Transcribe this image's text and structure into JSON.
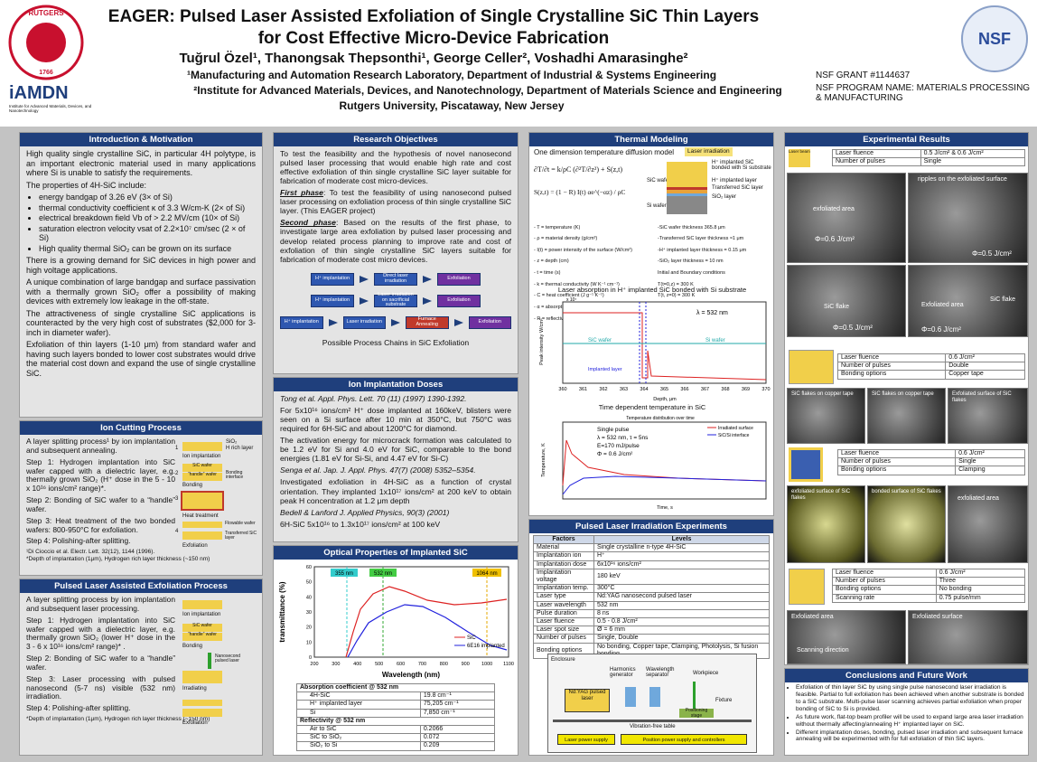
{
  "header": {
    "title": [
      "EAGER: Pulsed Laser Assisted Exfoliation of Single Crystalline SiC Thin Layers",
      "for Cost Effective Micro-Device Fabrication"
    ],
    "authors": "Tuğrul Özel¹, Thanongsak Thepsonthi¹, George Celler², Voshadhi Amarasinghe²",
    "affiliations": [
      "¹Manufacturing  and Automation Research Laboratory,  Department of Industrial & Systems Engineering",
      "²Institute for Advanced Materials, Devices, and Nanotechnology, Department of Materials Science and Engineering",
      "Rutgers University, Piscataway, New Jersey"
    ],
    "grant": [
      "NSF GRANT  #1144637",
      "NSF PROGRAM NAME:  MATERIALS PROCESSING & MANUFACTURING"
    ],
    "rutgers": [
      "RUTGERS",
      "1766"
    ],
    "iamdn": [
      "iAMDN",
      "Institute for Advanced Materials, Devices, and Nanotechnology"
    ],
    "nsf": "NSF"
  },
  "intro": {
    "title": "Introduction & Motivation",
    "paras1": [
      "High quality single crystalline SiC, in particular 4H polytype, is an important electronic material used in many applications where Si is unable to satisfy the requirements.",
      "The properties of 4H-SiC include:"
    ],
    "bullets": [
      "energy bandgap of 3.26 eV (3× of Si)",
      "thermal conductivity coefficient  κ of 3.3 W/cm-K (2× of Si)",
      "electrical breakdown field Vb of > 2.2 MV/cm (10× of Si)",
      "saturation electron velocity  vsat of 2.2×10⁷ cm/sec (2 × of Si)",
      "High quality thermal SiO₂ can be grown on its surface"
    ],
    "paras2": [
      "There is a growing demand for SiC devices in high power and high voltage applications.",
      "A unique combination of large bandgap and surface passivation with a thermally grown SiO₂ offer a possibility of making devices with extremely low leakage in the off-state.",
      "The attractiveness of single crystalline SiC applications is counteracted by the very high cost of substrates ($2,000 for 3-inch in diameter wafer).",
      "Exfoliation of thin layers (1-10 μm) from standard wafer and having such layers bonded to lower cost substrates would drive the material cost down and expand the use of single crystalline SiC."
    ]
  },
  "ion_cutting": {
    "title": "Ion Cutting Process",
    "steps": [
      "A layer splitting process¹ by ion implantation and subsequent annealing.",
      "Step 1: Hydrogen implantation into SiC wafer capped with a dielectric layer, e.g. thermally grown SiO₂ (H⁺ dose in the 5 - 10 x 10¹⁶ ions/cm² range)*.",
      "Step 2: Bonding of SiC wafer to a “handle” wafer.",
      "Step 3: Heat treatment of the two bonded wafers: 800-950°C for exfoliation.",
      "Step 4: Polishing-after splitting."
    ],
    "figure": [
      "1",
      "2",
      "3",
      "4",
      "SiO₂",
      "H rich layer",
      "Ion implantation",
      "SiC wafer",
      "“handle” wafer",
      "Bonding interface",
      "Bonding",
      "Heat treatment",
      "Flowable wafer",
      "Transferred SiC layer",
      "Exfoliation"
    ],
    "notes": [
      "¹Di Cioccio et al. Electr. Lett. 32(12), 1144 (1996).",
      "*Depth of implantation (1μm), Hydrogen rich layer thickness (~150 nm)"
    ]
  },
  "plae": {
    "title": "Pulsed Laser Assisted Exfoliation Process",
    "steps": [
      "A layer splitting process by ion implantation and subsequent laser processing.",
      "Step 1: Hydrogen implantation into SiC wafer capped with a dielectric layer, e.g. thermally grown SiO₂ (lower H⁺ dose in the 3 - 6 x 10¹⁶ ions/cm² range)* .",
      "Step 2: Bonding of SiC wafer to a “handle” wafer.",
      "Step 3: Laser processing with pulsed nanosecond (5-7 ns) visible (532 nm) irradiation.",
      "Step 4: Polishing-after splitting."
    ],
    "figure": [
      "Ion implantation",
      "Bonding",
      "Nanosecond pulsed laser",
      "Irradiating",
      "Exfoliation",
      "SiC wafer",
      "“handle” wafer"
    ],
    "notes": [
      "*Depth of implantation (1μm), Hydrogen rich layer thickness (~150 nm)"
    ]
  },
  "objectives": {
    "title": "Research Objectives",
    "intro": [
      "To test the feasibility and the hypothesis of novel nanosecond pulsed laser processing that would enable high rate and cost effective exfoliation of thin single crystalline SiC layer suitable for fabrication of moderate cost micro-devices."
    ],
    "phases": [
      {
        "label": "First phase",
        "text": ": To test the feasibility of using nanosecond pulsed laser processing on exfoliation process of thin single crystalline SiC layer. (This EAGER project)"
      },
      {
        "label": "Second phase",
        "text": ": Based on the results of the first phase, to investigate large area exfoliation by pulsed laser processing and develop related process planning to improve rate and cost of exfoliation of thin single crystalline SiC layers suitable for fabrication of moderate cost micro devices."
      }
    ],
    "chains": [
      [
        "H⁺ implantation",
        "Direct laser irradiation",
        "Exfoliation"
      ],
      [
        "H⁺ implantation",
        "Laser irradiation on sacrificial substrate",
        "Exfoliation"
      ],
      [
        "H⁺ implantation",
        "Laser irradiation",
        "Furnace Annealing",
        "Exfoliation"
      ]
    ],
    "caption": "Possible Process Chains in SiC Exfoliation"
  },
  "ion_doses": {
    "title": "Ion Implantation Doses",
    "items": [
      {
        "cite": "Tong et al. Appl. Phys. Lett. 70 (11) (1997) 1390-1392."
      },
      {
        "p": "For 5x10¹⁶ ions/cm² H⁺ dose implanted at 160keV, blisters were seen on a Si surface after 10 min at 350°C, but 750°C was required for 6H-SiC and about 1200°C for diamond."
      },
      {
        "p": "The activation energy for microcrack formation was calculated to be 1.2 eV for Si and 4.0 eV for SiC, comparable to the bond energies (1.81 eV for Si-Si, and 4.47 eV for Si-C)"
      },
      {
        "cite": "Senga et al. Jap. J. Appl. Phys. 47(7) (2008) 5352–5354."
      },
      {
        "p": "Investigated exfoliation in 4H-SiC as a function of crystal orientation. They implanted 1x10¹⁷ ions/cm² at 200 keV to obtain peak H concentration at 1.2 μm depth"
      },
      {
        "cite": "Bedell & Lanford J. Applied Physics, 90(3) (2001)"
      },
      {
        "p": "6H-SiC 5x10¹⁶ to 1.3x10¹⁷ ions/cm² at 100 keV"
      }
    ]
  },
  "optical": {
    "title": "Optical Properties of Implanted SiC",
    "graph": {
      "ylabel": "transmittance (%)",
      "xlabel": "Wavelength (nm)",
      "xticks": [
        200,
        300,
        400,
        500,
        600,
        700,
        800,
        900,
        1000,
        1100
      ],
      "yticks": [
        0,
        10,
        20,
        30,
        40,
        50,
        60
      ],
      "markers": [
        "355 nm",
        "532 nm",
        "1064 nm"
      ],
      "legend": [
        "SiC",
        "6E16 implanted"
      ]
    },
    "table": [
      {
        "heading": "Absorption coefficient @ 532 nm",
        "rows": [
          [
            "4H-SiC",
            "19.8 cm⁻¹"
          ],
          [
            "H⁺ implanted layer",
            "75,205 cm⁻¹"
          ],
          [
            "Si",
            "7,850 cm⁻¹"
          ]
        ]
      },
      {
        "heading": "Reflectivity @ 532 nm",
        "rows": [
          [
            "Air to SiC",
            "0.2066"
          ],
          [
            "SiC to SiO₂",
            "0.072"
          ],
          [
            "SiO₂ to Si",
            "0.209"
          ]
        ]
      }
    ]
  },
  "thermal": {
    "title": "Thermal Modeling",
    "model": "One dimension temperature diffusion model",
    "diagram": [
      "Laser irradiation",
      "H⁺ implanted SiC bonded with Si substrate",
      "SiC wafer",
      "H⁺ implanted layer",
      "Transferred SiC layer",
      "SiO₂ layer",
      "Si wafer"
    ],
    "eq": [
      "∂T/∂t = k/ρC (∂²T/∂z²) + S(z,t)",
      "S(z,t) = (1 − R) I(t) αe^(−αz) / ρC"
    ],
    "vars": [
      "- T = temperature (K)",
      "- ρ = material density (g/cm³)",
      "- I(t) = power intensity of the surface (W/cm²)",
      "- z = depth (cm)",
      "- t = time (s)",
      "- k = thermal conductivity (W K⁻¹ cm⁻¹)",
      "- C = heat coefficient (J g⁻¹ K⁻¹)",
      "- α = absorption coefficient (cm⁻¹)",
      "- R = reflectivity"
    ],
    "params": [
      "-SiC wafer thickness 365.8 μm",
      "-Transferred SiC layer thickness ≈1 μm",
      "-H⁺ implanted layer thickness = 0.15 μm",
      "-SiO₂ layer thickness = 10 nm",
      "Initial and Boundary conditions",
      "T(t=0,z) = 300 K",
      "T(t, z=0) = 300 K",
      "dT/dz (t, z=L) = 0 (zero heat flux)"
    ],
    "chart1": {
      "title": "Laser absorption in H⁺ implanted SiC bonded with Si substrate",
      "ylabel": "Peak intensity W/cm²",
      "xlabel": "Depth, μm",
      "xticks": [
        360,
        361,
        362,
        363,
        364,
        365,
        366,
        367,
        368,
        369,
        370
      ],
      "notes": [
        "x 10⁷",
        "λ = 532 nm",
        "SiC wafer",
        "Si wafer",
        "Implanted layer"
      ]
    },
    "chart2": {
      "title": "Time dependent temperature in SiC",
      "subtitle": "Temperature distribution over time",
      "ylabel": "Temperature, K",
      "xlabel": "Time, s",
      "legend": [
        "Irradiated surface",
        "SiC/Si interface"
      ],
      "notes": [
        "Single pulse",
        "λ = 532 nm, τ = 5ns",
        "E=170 mJ/pulse",
        "Φ = 0.6 J/cm²"
      ]
    }
  },
  "pulsed": {
    "title": "Pulsed Laser Irradiation Experiments",
    "header": [
      "Factors",
      "Levels"
    ],
    "rows": [
      [
        "Material",
        "Single crystalline n-type 4H-SiC"
      ],
      [
        "Implantation ion",
        "H⁺"
      ],
      [
        "Implantation dose",
        "6x10¹⁶ ions/cm²"
      ],
      [
        "Implantation voltage",
        "180 keV"
      ],
      [
        "Implantation temp.",
        "300°C"
      ],
      [
        "Laser type",
        "Nd:YAG nanosecond pulsed laser"
      ],
      [
        "Laser wavelength",
        "532 nm"
      ],
      [
        "Pulse duration",
        "8 ns"
      ],
      [
        "Laser fluence",
        "0.5 - 0.8 J/cm²"
      ],
      [
        "Laser spot size",
        "Ø = 6 mm"
      ],
      [
        "Number of pulses",
        "Single, Double"
      ],
      [
        "Bonding options",
        "No bonding, Copper tape, Clamping, Photolysis, Si fusion bonding"
      ]
    ],
    "setup": [
      "Enclosure",
      "Harmonics generator",
      "Wavelength separator",
      "Workpiece",
      "Nd:YAG pulsed laser",
      "Fixture",
      "Positioning stage",
      "Vibration-free table",
      "Laser power supply",
      "Position power supply and controllers"
    ]
  },
  "experimental": {
    "title": "Experimental Results",
    "beam": "Laser beam",
    "groups": [
      {
        "rows": [
          [
            "Laser fluence",
            "0.5 J/cm² & 0.6 J/cm²"
          ],
          [
            "Number of pulses",
            "Single"
          ]
        ],
        "images": [
          "exfoliated area",
          "Φ=0.6 J/cm²",
          "ripples on the exfoliated surface",
          "Φ=0.5 J/cm²",
          "SiC flake",
          "Φ=0.5 J/cm²",
          "Exfoliated area",
          "SiC flake",
          "Φ=0.6 J/cm²"
        ]
      },
      {
        "rows": [
          [
            "Laser fluence",
            "0.6 J/cm²"
          ],
          [
            "Number of pulses",
            "Double"
          ],
          [
            "Bonding options",
            "Copper tape"
          ]
        ],
        "images": [
          "SiC flakes on copper tape",
          "SiC flakes on copper tape",
          "Exfoliated surface of SiC flakes"
        ]
      },
      {
        "rows": [
          [
            "Laser fluence",
            "0.6 J/cm²"
          ],
          [
            "Number of pulses",
            "Single"
          ],
          [
            "Bonding options",
            "Clamping"
          ]
        ],
        "images": [
          "exfoliated surface of SiC flakes",
          "bonded surface of SiC flakes",
          "exfoliated area"
        ]
      },
      {
        "rows": [
          [
            "Laser fluence",
            "0.6 J/cm²"
          ],
          [
            "Number of pulses",
            "Three"
          ],
          [
            "Bonding options",
            "No bonding"
          ],
          [
            "Scanning rate",
            "0.75 pulse/mm"
          ]
        ],
        "images": [
          "Exfoliated area",
          "Scanning direction",
          "Exfoliated surface"
        ]
      }
    ]
  },
  "conclusions": {
    "title": "Conclusions and Future Work",
    "bullets": [
      "Exfoliation of thin layer SiC by using single pulse nanosecond laser irradiation is feasible. Partial to full exfoliation has been achieved when another substrate is bonded to a SiC substrate. Multi-pulse laser scanning achieves partial exfoliation when proper bonding of SiC to Si is provided.",
      "As future work, flat-top beam profiler will be used to expand large area laser irradiation without thermally affecting/annealing H⁺ implanted layer on SiC.",
      "Different implantation doses, bonding, pulsed laser irradiation and subsequent furnace annealing will be experimented with for full exfoliation of thin SiC layers."
    ]
  }
}
